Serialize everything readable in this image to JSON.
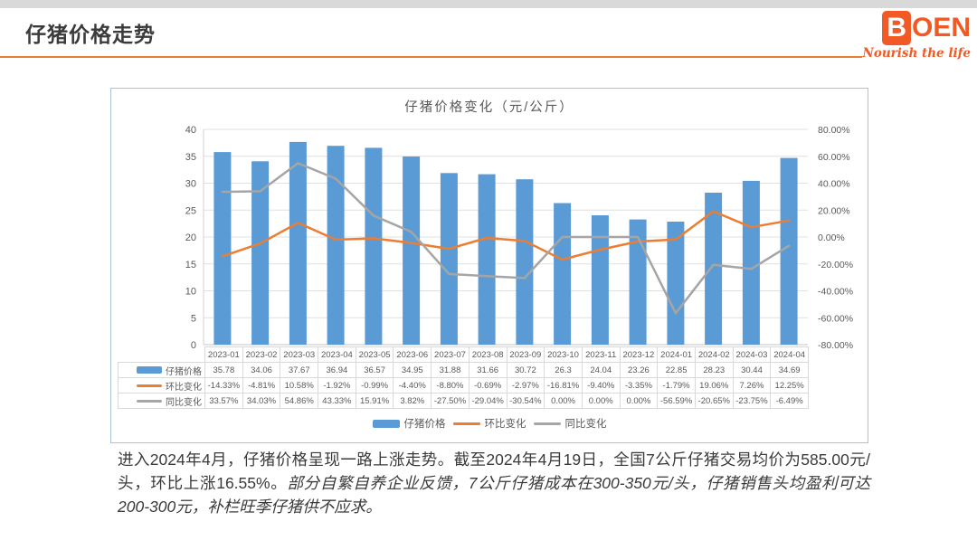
{
  "header": {
    "title": "仔猪价格走势",
    "logo": {
      "letter": "B",
      "rest": "OEN",
      "tagline": "Nourish the life"
    }
  },
  "chart_data": {
    "type": "bar+line combo",
    "title": "仔猪价格变化（元/公斤）",
    "categories": [
      "2023-01",
      "2023-02",
      "2023-03",
      "2023-04",
      "2023-05",
      "2023-06",
      "2023-07",
      "2023-08",
      "2023-09",
      "2023-10",
      "2023-11",
      "2023-12",
      "2024-01",
      "2024-02",
      "2024-03",
      "2024-04"
    ],
    "series": [
      {
        "name": "仔猪价格",
        "type": "bar",
        "axis": "left",
        "color": "#5b9bd5",
        "values": [
          35.78,
          34.06,
          37.67,
          36.94,
          36.57,
          34.95,
          31.88,
          31.66,
          30.72,
          26.3,
          24.04,
          23.26,
          22.85,
          28.23,
          30.44,
          34.69
        ]
      },
      {
        "name": "环比变化",
        "type": "line",
        "axis": "right",
        "color": "#ed7d31",
        "values": [
          -14.33,
          -4.81,
          10.58,
          -1.92,
          -0.99,
          -4.4,
          -8.8,
          -0.69,
          -2.97,
          -16.81,
          -9.4,
          -3.35,
          -1.79,
          19.06,
          7.26,
          12.25
        ]
      },
      {
        "name": "同比变化",
        "type": "line",
        "axis": "right",
        "color": "#a5a5a5",
        "values": [
          33.57,
          34.03,
          54.86,
          43.33,
          15.91,
          3.82,
          -27.5,
          -29.04,
          -30.54,
          0.0,
          0.0,
          0.0,
          -56.59,
          -20.65,
          -23.75,
          -6.49
        ]
      }
    ],
    "left_axis": {
      "min": 0,
      "max": 40,
      "step": 5
    },
    "right_axis": {
      "min": -80,
      "max": 80,
      "step": 20,
      "format": "percent"
    },
    "grid": true,
    "legend_position": "bottom"
  },
  "table": {
    "headers": [
      "2023-01",
      "2023-02",
      "2023-03",
      "2023-04",
      "2023-05",
      "2023-06",
      "2023-07",
      "2023-08",
      "2023-09",
      "2023-10",
      "2023-11",
      "2023-12",
      "2024-01",
      "2024-02",
      "2024-03",
      "2024-04"
    ],
    "rows": [
      {
        "label": "仔猪价格",
        "key": "bar-blue",
        "values": [
          "35.78",
          "34.06",
          "37.67",
          "36.94",
          "36.57",
          "34.95",
          "31.88",
          "31.66",
          "30.72",
          "26.3",
          "24.04",
          "23.26",
          "22.85",
          "28.23",
          "30.44",
          "34.69"
        ]
      },
      {
        "label": "环比变化",
        "key": "line-orange",
        "values": [
          "-14.33%",
          "-4.81%",
          "10.58%",
          "-1.92%",
          "-0.99%",
          "-4.40%",
          "-8.80%",
          "-0.69%",
          "-2.97%",
          "-16.81%",
          "-9.40%",
          "-3.35%",
          "-1.79%",
          "19.06%",
          "7.26%",
          "12.25%"
        ]
      },
      {
        "label": "同比变化",
        "key": "line-gray",
        "values": [
          "33.57%",
          "34.03%",
          "54.86%",
          "43.33%",
          "15.91%",
          "3.82%",
          "-27.50%",
          "-29.04%",
          "-30.54%",
          "0.00%",
          "0.00%",
          "0.00%",
          "-56.59%",
          "-20.65%",
          "-23.75%",
          "-6.49%"
        ]
      }
    ]
  },
  "commentary": {
    "normal": "进入2024年4月，仔猪价格呈现一路上涨走势。截至2024年4月19日，全国7公斤仔猪交易均价为585.00元/头，环比上涨16.55%。",
    "italic": "部分自繁自养企业反馈，7公斤仔猪成本在300-350元/头，仔猪销售头均盈利可达200-300元，补栏旺季仔猪供不应求。"
  },
  "colors": {
    "brand_orange": "#f15a24",
    "divider_orange": "#e8812f",
    "bar_blue": "#5b9bd5",
    "line_orange": "#ed7d31",
    "line_gray": "#a5a5a5",
    "panel_border": "#a9c6d6",
    "grid_line": "#e0e0e0",
    "text_gray": "#595959"
  }
}
